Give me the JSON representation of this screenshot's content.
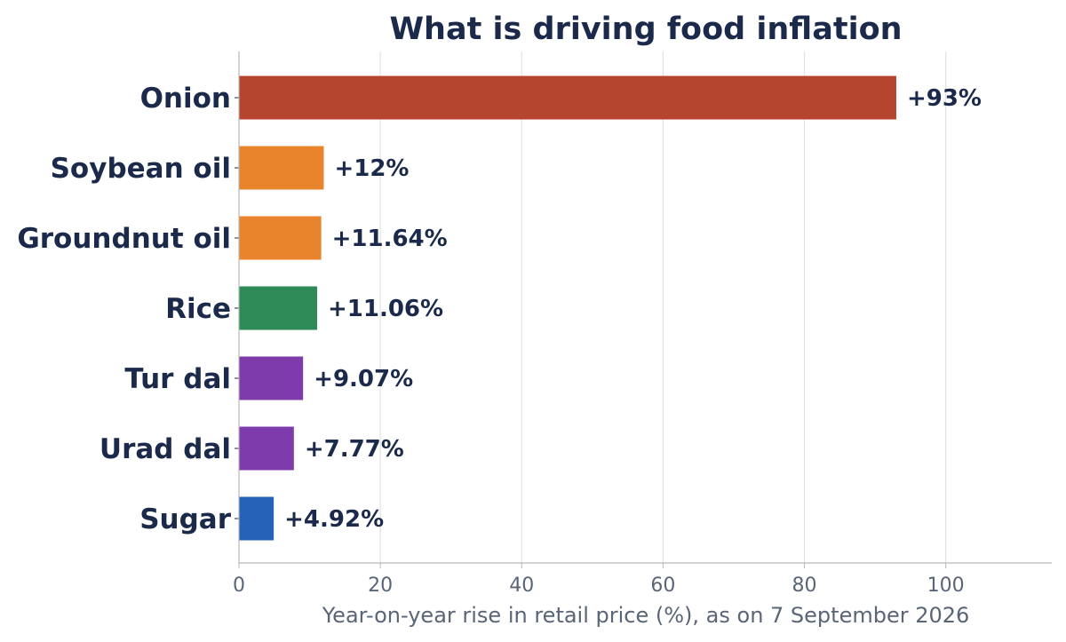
{
  "chart_data": {
    "type": "bar",
    "orientation": "horizontal",
    "title": "What is driving food inflation",
    "xlabel": "Year-on-year rise in retail price (%), as on 7 September 2026",
    "ylabel": "",
    "xlim": [
      0,
      115
    ],
    "xticks": [
      0,
      20,
      40,
      60,
      80,
      100
    ],
    "grid": "vertical",
    "legend": "none",
    "categories": [
      "Onion",
      "Soybean oil",
      "Groundnut oil",
      "Rice",
      "Tur dal",
      "Urad dal",
      "Sugar"
    ],
    "values": [
      93,
      12,
      11.64,
      11.06,
      9.07,
      7.77,
      4.92
    ],
    "data_labels": [
      "+93%",
      "+12%",
      "+11.64%",
      "+11.06%",
      "+9.07%",
      "+7.77%",
      "+4.92%"
    ],
    "colors": [
      "#b5452f",
      "#e8842c",
      "#e8842c",
      "#2e8a57",
      "#7d3bab",
      "#7d3bab",
      "#2563b8"
    ]
  }
}
